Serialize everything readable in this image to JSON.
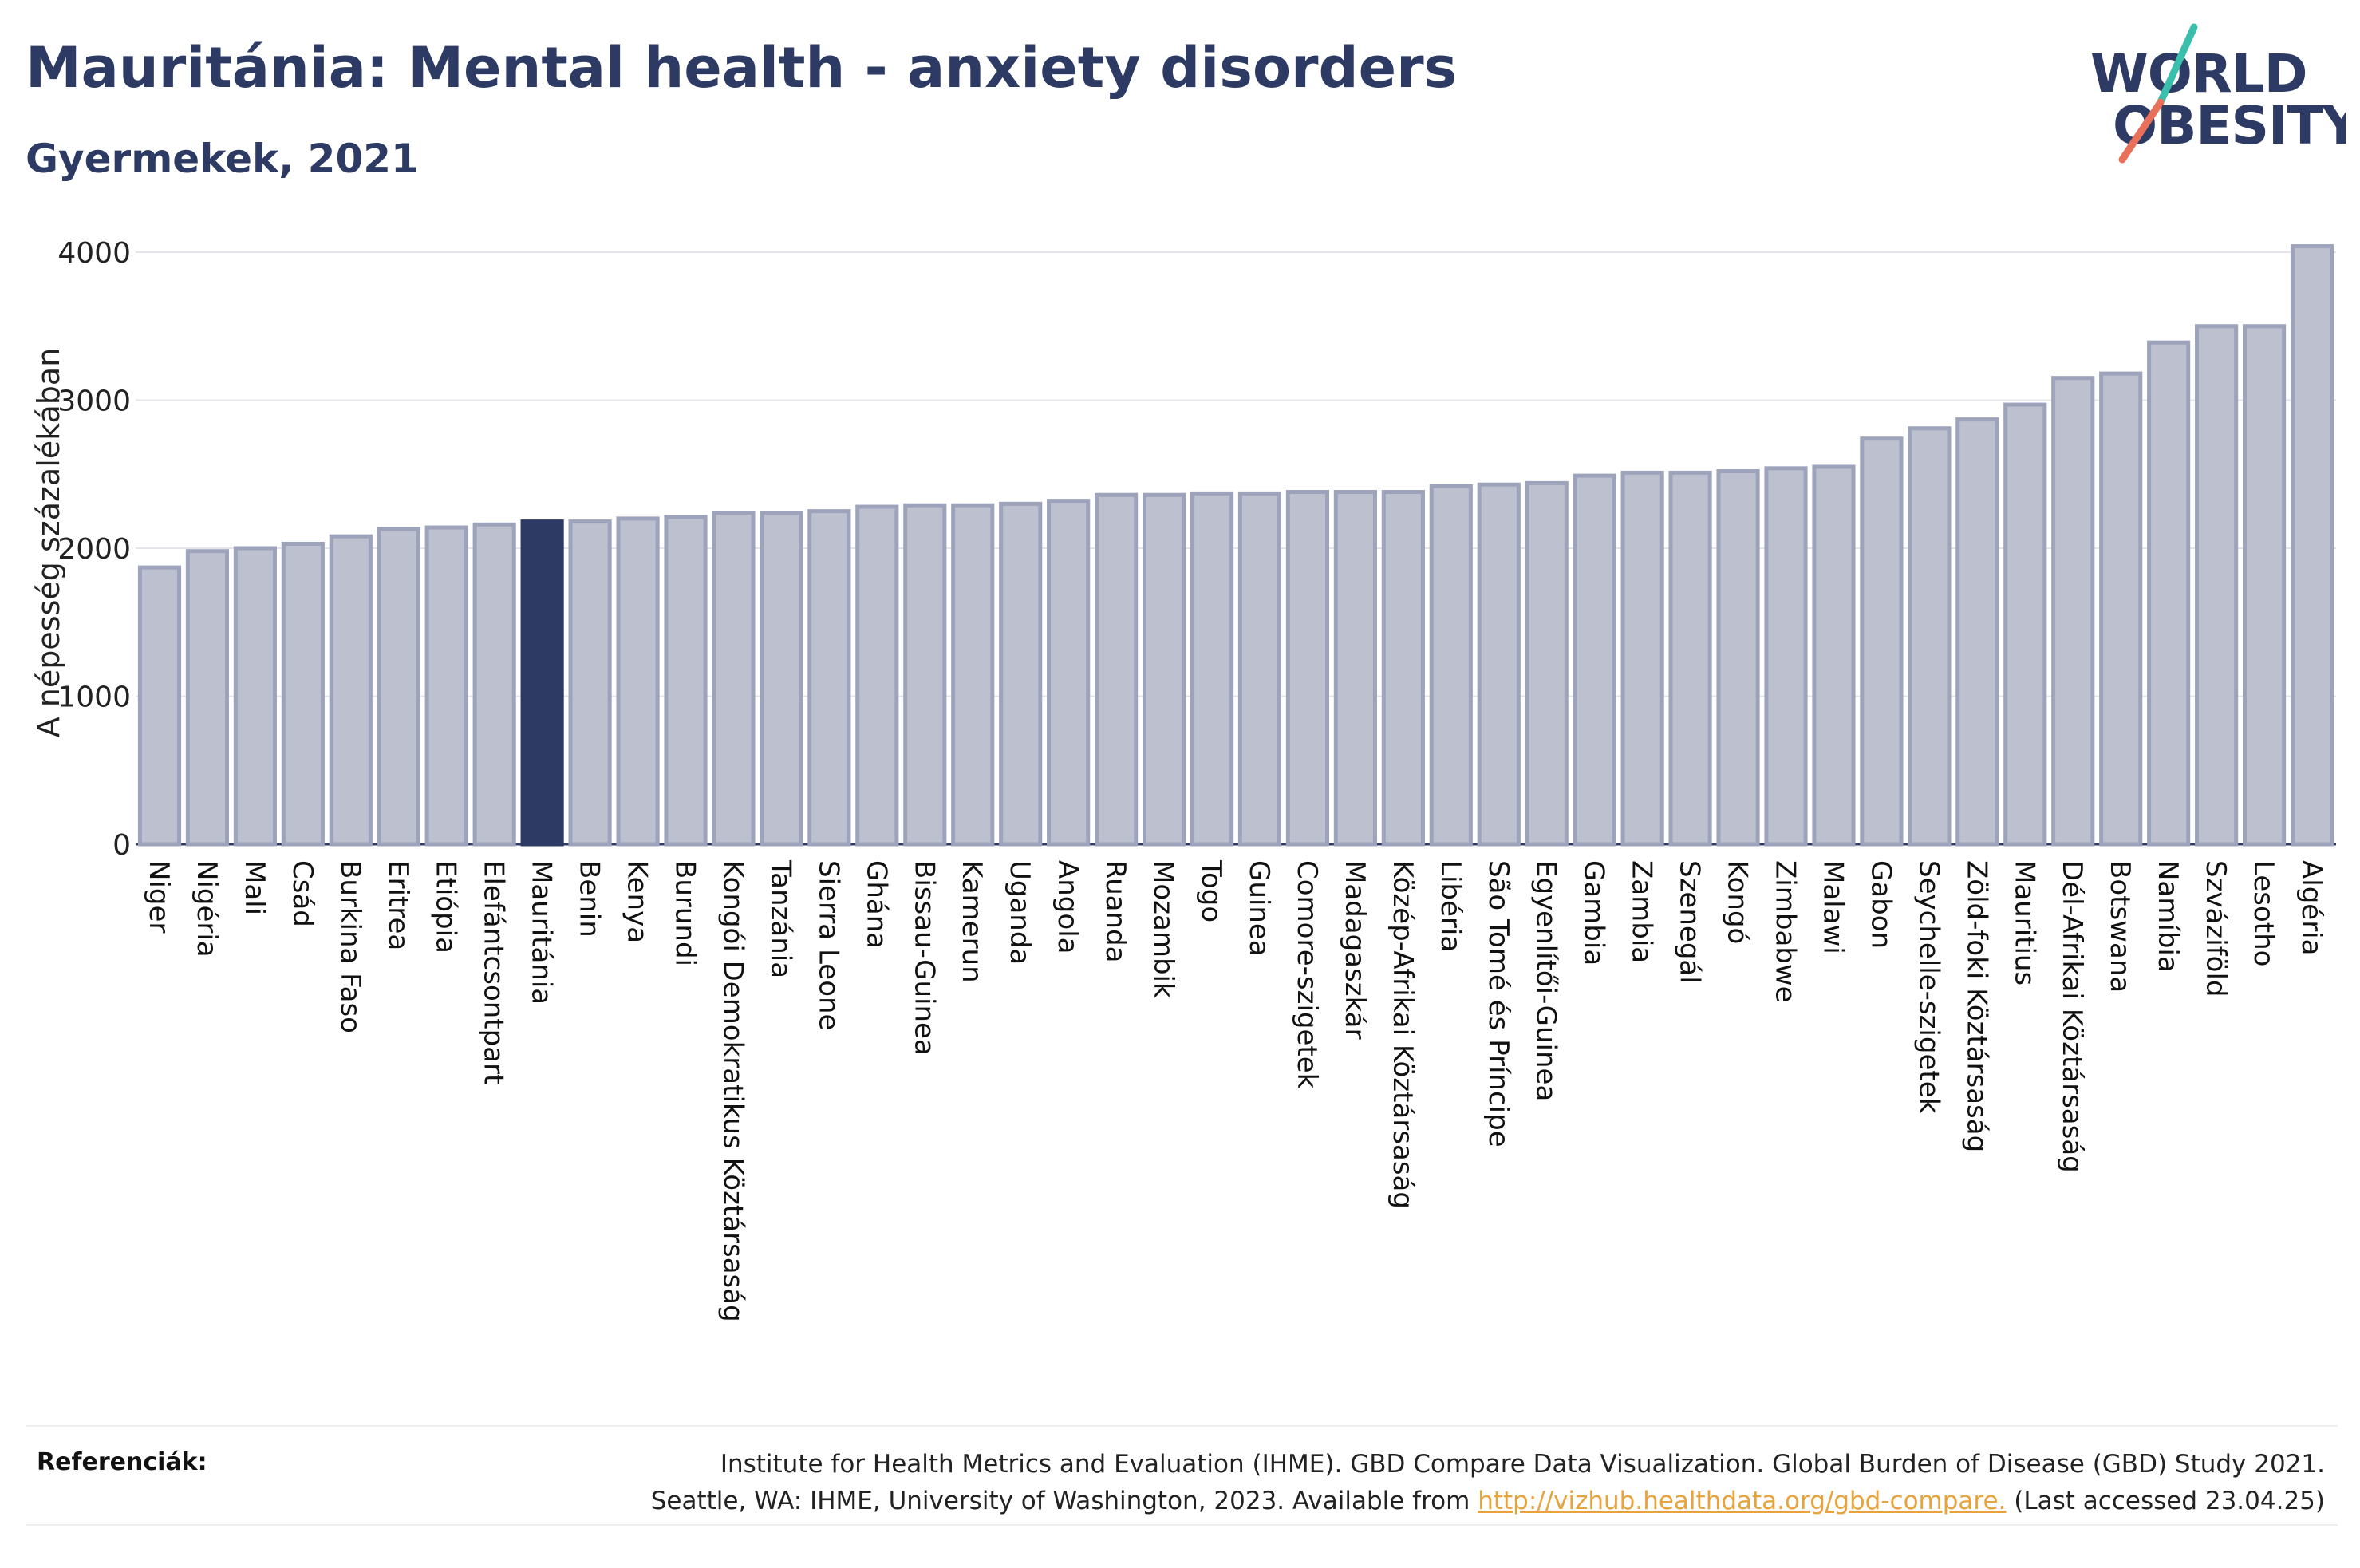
{
  "title": "Mauritánia: Mental health - anxiety disorders",
  "subtitle": "Gyermekek, 2021",
  "logo": {
    "line1": "WORLD",
    "line2": "OBESITY"
  },
  "colors": {
    "highlight": "#2d3a63",
    "bar": "#bcc0cf",
    "bar_stroke": "#9da3bb",
    "text": "#2d3a63",
    "link": "#e8a33d"
  },
  "chart_data": {
    "type": "bar",
    "ylabel": "A népesség százalékában",
    "ylim": [
      0,
      4200
    ],
    "yticks": [
      0,
      1000,
      2000,
      3000,
      4000
    ],
    "highlight": "Mauritánia",
    "grid": true,
    "categories": [
      "Niger",
      "Nigéria",
      "Mali",
      "Csád",
      "Burkina Faso",
      "Eritrea",
      "Etiópia",
      "Elefántcsontpart",
      "Mauritánia",
      "Benin",
      "Kenya",
      "Burundi",
      "Kongói Demokratikus Köztársaság",
      "Tanzánia",
      "Sierra Leone",
      "Ghána",
      "Bissau-Guinea",
      "Kamerun",
      "Uganda",
      "Angola",
      "Ruanda",
      "Mozambik",
      "Togo",
      "Guinea",
      "Comore-szigetek",
      "Madagaszkár",
      "Közép-Afrikai Köztársaság",
      "Libéria",
      "São Tomé és Príncipe",
      "Egyenlítői-Guinea",
      "Gambia",
      "Zambia",
      "Szenegál",
      "Kongó",
      "Zimbabwe",
      "Malawi",
      "Gabon",
      "Seychelle-szigetek",
      "Zöld-foki Köztársaság",
      "Mauritius",
      "Dél-Afrikai Köztársaság",
      "Botswana",
      "Namíbia",
      "Szváziföld",
      "Lesotho",
      "Algéria"
    ],
    "values": [
      1870,
      1980,
      2000,
      2030,
      2080,
      2130,
      2140,
      2160,
      2180,
      2180,
      2200,
      2210,
      2240,
      2240,
      2250,
      2280,
      2290,
      2290,
      2300,
      2320,
      2360,
      2360,
      2370,
      2370,
      2380,
      2380,
      2380,
      2420,
      2430,
      2440,
      2490,
      2510,
      2510,
      2520,
      2540,
      2550,
      2740,
      2810,
      2870,
      2970,
      3150,
      3180,
      3390,
      3500,
      3500,
      4040
    ]
  },
  "references": {
    "label": "Referenciák:",
    "line1": "Institute for Health Metrics and Evaluation (IHME). GBD Compare Data Visualization. Global Burden of Disease (GBD) Study 2021.",
    "line2_prefix": "Seattle, WA: IHME, University of Washington, 2023. Available from",
    "link": "http://vizhub.healthdata.org/gbd-compare.",
    "line2_suffix": "(Last accessed 23.04.25)"
  }
}
